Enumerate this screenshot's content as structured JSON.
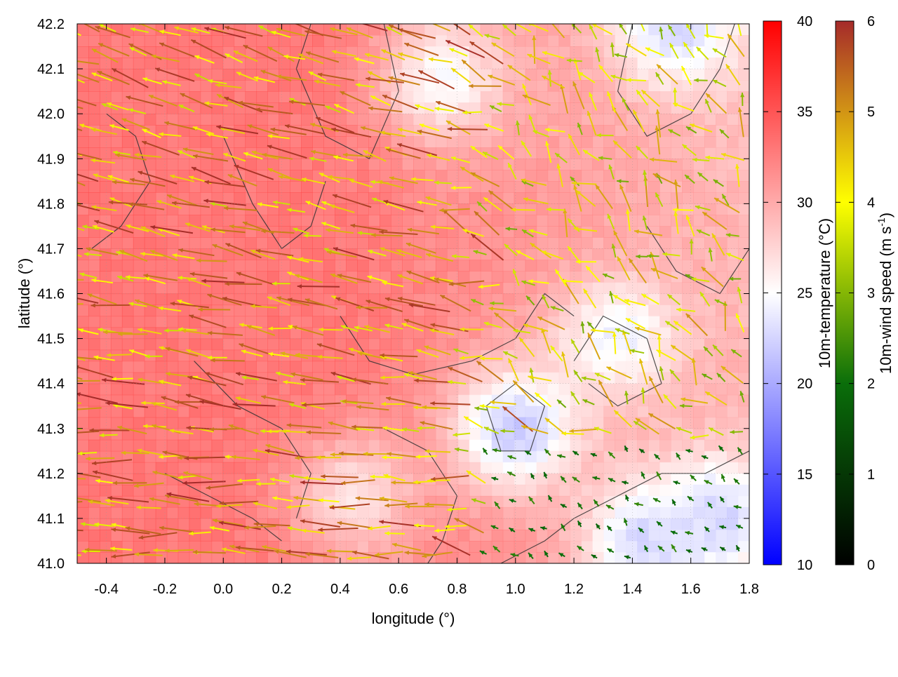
{
  "chart_data": {
    "type": "heatmap",
    "title": "",
    "xlabel": "longitude (°)",
    "ylabel": "latitude (°)",
    "xlim": [
      -0.5,
      1.8
    ],
    "ylim": [
      41.0,
      42.2
    ],
    "xticks": [
      -0.4,
      -0.2,
      0.0,
      0.2,
      0.4,
      0.6,
      0.8,
      1.0,
      1.2,
      1.4,
      1.6,
      1.8
    ],
    "xtick_labels": [
      "-0.4",
      "-0.2",
      "0.0",
      "0.2",
      "0.4",
      "0.6",
      "0.8",
      "1.0",
      "1.2",
      "1.4",
      "1.6",
      "1.8"
    ],
    "yticks": [
      41.0,
      41.1,
      41.2,
      41.3,
      41.4,
      41.5,
      41.6,
      41.7,
      41.8,
      41.9,
      42.0,
      42.1,
      42.2
    ],
    "ytick_labels": [
      "41.0",
      "41.1",
      "41.2",
      "41.3",
      "41.4",
      "41.5",
      "41.6",
      "41.7",
      "41.8",
      "41.9",
      "42.0",
      "42.1",
      "42.2"
    ],
    "grid": true,
    "temperature_colorbar": {
      "label": "10m-temperature (°C)",
      "range": [
        10,
        40
      ],
      "ticks": [
        10,
        15,
        20,
        25,
        30,
        35,
        40
      ],
      "tick_labels": [
        "10",
        "15",
        "20",
        "25",
        "30",
        "35",
        "40"
      ],
      "colors": [
        "#0000ff",
        "#ffffff",
        "#ff0000"
      ],
      "color_at": [
        10,
        25,
        40
      ]
    },
    "wind_colorbar": {
      "label": "10m-wind speed (m s",
      "label_sup": "-1",
      "label_end": ")",
      "range": [
        0,
        6
      ],
      "ticks": [
        0,
        1,
        2,
        3,
        4,
        5,
        6
      ],
      "tick_labels": [
        "0",
        "1",
        "2",
        "3",
        "4",
        "5",
        "6"
      ],
      "colors": [
        "#000000",
        "#0a6e0a",
        "#ffff00",
        "#a52a2a"
      ],
      "color_at": [
        0,
        2,
        4,
        6
      ]
    },
    "temperature_field": {
      "base_west": 35,
      "cool_spots": [
        {
          "lon": 1.0,
          "lat": 41.3,
          "temp": 21
        },
        {
          "lon": 1.45,
          "lat": 41.05,
          "temp": 22
        },
        {
          "lon": 1.7,
          "lat": 41.1,
          "temp": 22
        },
        {
          "lon": 1.35,
          "lat": 41.5,
          "temp": 24
        },
        {
          "lon": 1.55,
          "lat": 42.2,
          "temp": 22
        },
        {
          "lon": 0.75,
          "lat": 42.08,
          "temp": 25
        },
        {
          "lon": 0.45,
          "lat": 41.15,
          "temp": 27
        }
      ]
    },
    "contour_lines": [
      [
        [
          -0.4,
          42.0
        ],
        [
          -0.3,
          41.95
        ],
        [
          -0.25,
          41.85
        ],
        [
          -0.35,
          41.75
        ],
        [
          -0.45,
          41.7
        ]
      ],
      [
        [
          0.3,
          42.2
        ],
        [
          0.25,
          42.1
        ],
        [
          0.35,
          41.95
        ],
        [
          0.5,
          41.9
        ],
        [
          0.6,
          42.05
        ],
        [
          0.55,
          42.2
        ]
      ],
      [
        [
          0.4,
          41.55
        ],
        [
          0.5,
          41.45
        ],
        [
          0.65,
          41.42
        ],
        [
          0.85,
          41.45
        ],
        [
          1.0,
          41.5
        ],
        [
          1.1,
          41.6
        ],
        [
          1.2,
          41.55
        ]
      ],
      [
        [
          0.55,
          41.3
        ],
        [
          0.7,
          41.25
        ],
        [
          0.8,
          41.15
        ],
        [
          0.75,
          41.05
        ],
        [
          0.7,
          41.0
        ]
      ],
      [
        [
          0.9,
          41.35
        ],
        [
          1.0,
          41.4
        ],
        [
          1.1,
          41.35
        ],
        [
          1.05,
          41.25
        ],
        [
          0.95,
          41.25
        ],
        [
          0.9,
          41.35
        ]
      ],
      [
        [
          0.95,
          41.0
        ],
        [
          1.1,
          41.05
        ],
        [
          1.2,
          41.1
        ],
        [
          1.35,
          41.15
        ],
        [
          1.5,
          41.2
        ],
        [
          1.65,
          41.2
        ],
        [
          1.8,
          41.25
        ]
      ],
      [
        [
          1.2,
          41.45
        ],
        [
          1.3,
          41.55
        ],
        [
          1.45,
          41.5
        ],
        [
          1.5,
          41.4
        ],
        [
          1.35,
          41.35
        ],
        [
          1.25,
          41.4
        ]
      ],
      [
        [
          1.4,
          42.2
        ],
        [
          1.35,
          42.05
        ],
        [
          1.45,
          41.95
        ],
        [
          1.6,
          42.0
        ],
        [
          1.7,
          42.1
        ],
        [
          1.75,
          42.2
        ]
      ],
      [
        [
          -0.1,
          41.45
        ],
        [
          0.05,
          41.35
        ],
        [
          0.2,
          41.3
        ],
        [
          0.3,
          41.2
        ],
        [
          0.25,
          41.1
        ]
      ],
      [
        [
          0.0,
          41.95
        ],
        [
          0.1,
          41.8
        ],
        [
          0.2,
          41.7
        ],
        [
          0.3,
          41.75
        ],
        [
          0.35,
          41.85
        ]
      ],
      [
        [
          1.45,
          41.75
        ],
        [
          1.55,
          41.65
        ],
        [
          1.7,
          41.6
        ],
        [
          1.8,
          41.7
        ]
      ],
      [
        [
          -0.2,
          41.2
        ],
        [
          -0.05,
          41.15
        ],
        [
          0.1,
          41.1
        ],
        [
          0.2,
          41.05
        ]
      ]
    ]
  }
}
